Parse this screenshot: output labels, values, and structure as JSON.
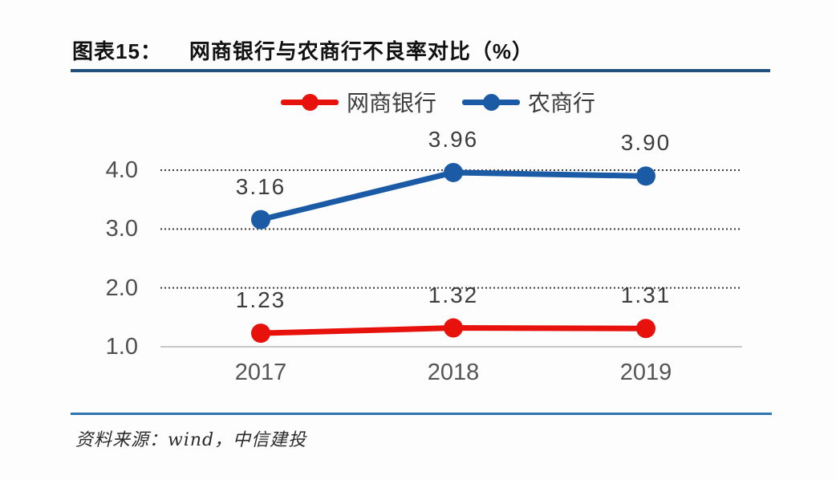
{
  "header": {
    "figure_label": "图表15：",
    "title": "网商银行与农商行不良率对比（%）"
  },
  "chart_data": {
    "type": "line",
    "title": "网商银行与农商行不良率对比（%）",
    "categories": [
      "2017",
      "2018",
      "2019"
    ],
    "series": [
      {
        "name": "网商银行",
        "color": "#e8120d",
        "values": [
          1.23,
          1.32,
          1.31
        ],
        "labels": [
          "1.23",
          "1.32",
          "1.31"
        ]
      },
      {
        "name": "农商行",
        "color": "#1b5aa5",
        "values": [
          3.16,
          3.96,
          3.9
        ],
        "labels": [
          "3.16",
          "3.96",
          "3.90"
        ]
      }
    ],
    "yticks": [
      1.0,
      2.0,
      3.0,
      4.0
    ],
    "ytick_labels": [
      "1.0",
      "2.0",
      "3.0",
      "4.0"
    ],
    "ylim": [
      1.0,
      4.6
    ],
    "grid": "horizontal dotted at 2.0/3.0/4.0, solid baseline at 1.0",
    "legend_position": "top-center"
  },
  "footer": {
    "source": "资料来源：wind，中信建投"
  },
  "colors": {
    "title_rule": "#1f4e79",
    "footer_rule": "#2e75b5",
    "grid_dotted": "#3a3a3a",
    "axis_baseline": "#b5b5b5"
  }
}
